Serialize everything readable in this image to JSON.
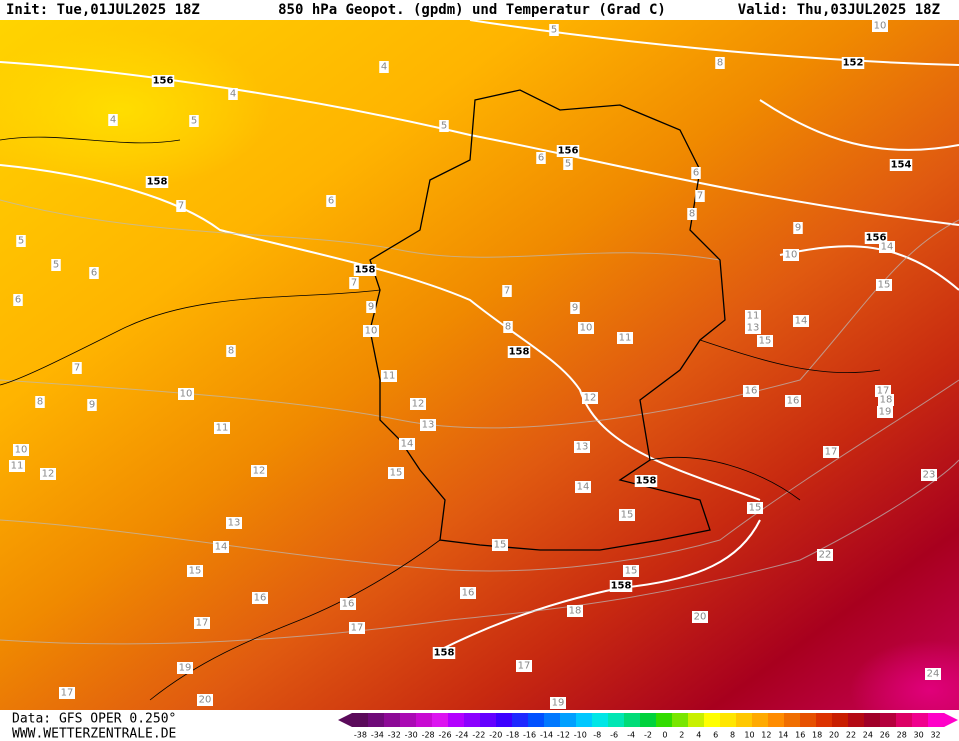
{
  "header": {
    "init": "Init: Tue,01JUL2025 18Z",
    "title": "850 hPa Geopot. (gpdm) und Temperatur (Grad C)",
    "valid": "Valid: Thu,03JUL2025 18Z"
  },
  "map": {
    "labels": [
      "156",
      "156",
      "152",
      "154",
      "156",
      "158",
      "158",
      "158",
      "158",
      "158",
      "158",
      "10",
      "5",
      "4",
      "4",
      "4",
      "5",
      "5",
      "8",
      "6",
      "5",
      "6",
      "7",
      "8",
      "7",
      "6",
      "5",
      "5",
      "6",
      "6",
      "7",
      "9",
      "10",
      "14",
      "15",
      "7",
      "9",
      "10",
      "8",
      "9",
      "10",
      "11",
      "11",
      "13",
      "15",
      "14",
      "8",
      "7",
      "11",
      "10",
      "8",
      "9",
      "16",
      "16",
      "17",
      "18",
      "19",
      "12",
      "12",
      "13",
      "11",
      "14",
      "13",
      "17",
      "10",
      "11",
      "12",
      "12",
      "15",
      "14",
      "23",
      "15",
      "15",
      "13",
      "14",
      "15",
      "22",
      "15",
      "15",
      "16",
      "16",
      "16",
      "17",
      "17",
      "18",
      "20",
      "17",
      "19",
      "24",
      "17",
      "20",
      "19"
    ]
  },
  "footer": {
    "data": "Data: GFS OPER 0.250°",
    "site": "WWW.WETTERZENTRALE.DE"
  },
  "legend": {
    "labels": [
      "-38",
      "-34",
      "-32",
      "-30",
      "-28",
      "-26",
      "-24",
      "-22",
      "-20",
      "-18",
      "-16",
      "-14",
      "-12",
      "-10",
      "-8",
      "-6",
      "-4",
      "-2",
      "0",
      "2",
      "4",
      "6",
      "8",
      "10",
      "12",
      "14",
      "16",
      "18",
      "20",
      "22",
      "24",
      "26",
      "28",
      "30",
      "32"
    ],
    "colors": [
      "#5a0a5a",
      "#6e0a78",
      "#8c0a96",
      "#aa0ab4",
      "#c80ad2",
      "#dc14f0",
      "#b400ff",
      "#8c00ff",
      "#6400ff",
      "#3c00ff",
      "#1e28ff",
      "#0050ff",
      "#0078ff",
      "#00a0ff",
      "#00c8ff",
      "#00e6e6",
      "#00e6b4",
      "#00dc78",
      "#00d23c",
      "#32dc00",
      "#78e600",
      "#c8f000",
      "#ffff00",
      "#ffe600",
      "#ffc800",
      "#ffaa00",
      "#ff8c00",
      "#f06e00",
      "#e65000",
      "#dc3200",
      "#c81e00",
      "#b40a14",
      "#a00028",
      "#b4003c",
      "#dc0064",
      "#f0008c",
      "#ff00c8"
    ]
  }
}
